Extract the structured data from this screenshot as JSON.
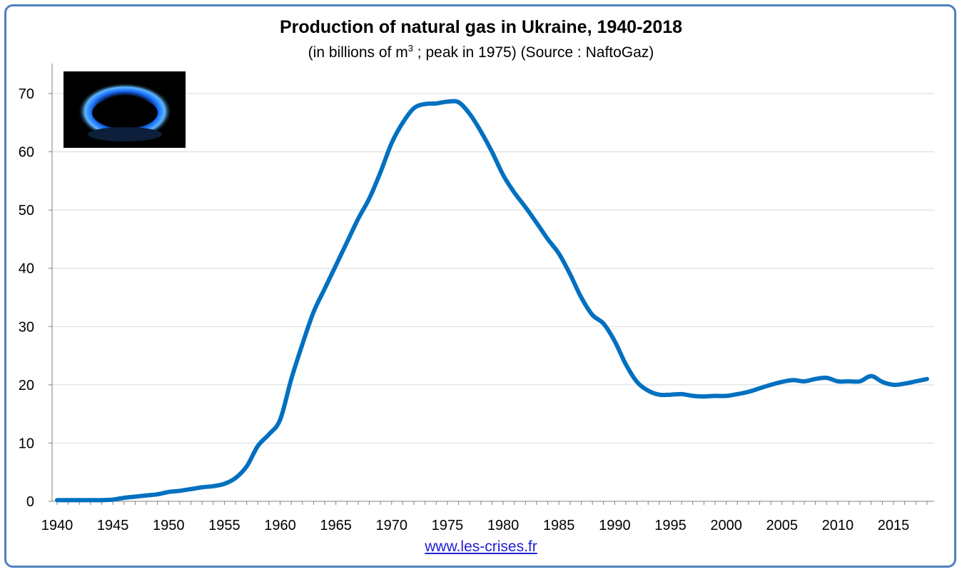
{
  "chart_data": {
    "type": "line",
    "title": "Production of natural gas in Ukraine, 1940-2018",
    "subtitle_pre": "(in billions of m",
    "subtitle_sup": "3",
    "subtitle_post": " ; peak in 1975) (Source : NaftoGaz)",
    "xlabel": "",
    "ylabel": "",
    "xlim": [
      1940,
      2018
    ],
    "ylim": [
      0,
      75
    ],
    "x_ticks": [
      1940,
      1945,
      1950,
      1955,
      1960,
      1965,
      1970,
      1975,
      1980,
      1985,
      1990,
      1995,
      2000,
      2005,
      2010,
      2015
    ],
    "y_ticks": [
      0,
      10,
      20,
      30,
      40,
      50,
      60,
      70
    ],
    "grid": "horizontal",
    "legend": "none",
    "colors": {
      "line": "#0070c0",
      "frame": "#4f81bd",
      "grid": "#d9d9d9",
      "link": "#1f1fd0"
    },
    "series": [
      {
        "x": [
          1940,
          1941,
          1942,
          1943,
          1944,
          1945,
          1946,
          1947,
          1948,
          1949,
          1950,
          1951,
          1952,
          1953,
          1954,
          1955,
          1956,
          1957,
          1958,
          1959,
          1960,
          1961,
          1962,
          1963,
          1964,
          1965,
          1966,
          1967,
          1968,
          1969,
          1970,
          1971,
          1972,
          1973,
          1974,
          1975,
          1976,
          1977,
          1978,
          1979,
          1980,
          1981,
          1982,
          1983,
          1984,
          1985,
          1986,
          1987,
          1988,
          1989,
          1990,
          1991,
          1992,
          1993,
          1994,
          1995,
          1996,
          1997,
          1998,
          1999,
          2000,
          2001,
          2002,
          2003,
          2004,
          2005,
          2006,
          2007,
          2008,
          2009,
          2010,
          2011,
          2012,
          2013,
          2014,
          2015,
          2016,
          2017,
          2018
        ],
        "values": [
          0.2,
          0.2,
          0.2,
          0.2,
          0.2,
          0.3,
          0.6,
          0.8,
          1.0,
          1.2,
          1.6,
          1.8,
          2.1,
          2.4,
          2.6,
          3.0,
          4.0,
          6.0,
          9.5,
          11.5,
          14.0,
          21.0,
          27.0,
          32.5,
          36.5,
          40.5,
          44.5,
          48.5,
          52.0,
          56.5,
          61.5,
          65.0,
          67.5,
          68.2,
          68.3,
          68.6,
          68.5,
          66.5,
          63.5,
          60.0,
          56.0,
          53.0,
          50.5,
          47.8,
          45.0,
          42.5,
          39.0,
          35.0,
          32.0,
          30.5,
          27.5,
          23.5,
          20.5,
          19.0,
          18.3,
          18.3,
          18.4,
          18.1,
          18.0,
          18.1,
          18.1,
          18.4,
          18.8,
          19.4,
          20.0,
          20.5,
          20.8,
          20.6,
          21.0,
          21.2,
          20.6,
          20.6,
          20.6,
          21.5,
          20.5,
          20.0,
          20.2,
          20.6,
          21.0
        ]
      }
    ]
  },
  "source_link": "www.les-crises.fr",
  "image": {
    "description_icon": "gas-burner-flame-photo"
  }
}
